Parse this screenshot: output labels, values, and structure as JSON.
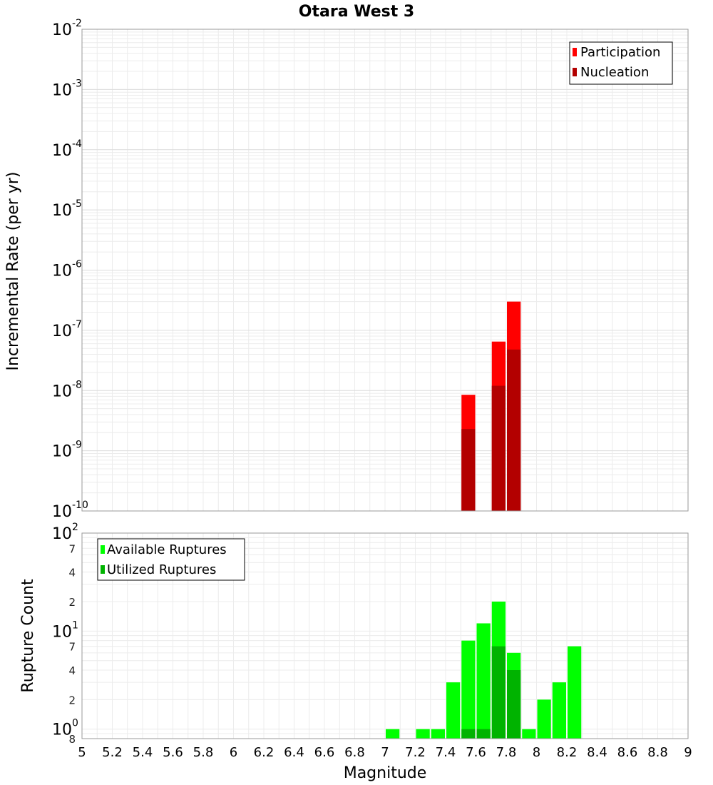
{
  "chart_data": [
    {
      "type": "bar",
      "title": "Otara West 3",
      "xlabel": "",
      "ylabel": "Incremental Rate (per yr)",
      "yscale": "log",
      "ylim": [
        1e-10,
        0.01
      ],
      "xlim": [
        5,
        9
      ],
      "grid": true,
      "bin_width": 0.1,
      "legend_position": "top-right",
      "y_tick_labels": [
        {
          "base": "10",
          "exp": "-10",
          "value": 1e-10
        },
        {
          "base": "10",
          "exp": "-9",
          "value": 1e-09
        },
        {
          "base": "10",
          "exp": "-8",
          "value": 1e-08
        },
        {
          "base": "10",
          "exp": "-7",
          "value": 1e-07
        },
        {
          "base": "10",
          "exp": "-6",
          "value": 1e-06
        },
        {
          "base": "10",
          "exp": "-5",
          "value": 1e-05
        },
        {
          "base": "10",
          "exp": "-4",
          "value": 0.0001
        },
        {
          "base": "10",
          "exp": "-3",
          "value": 0.001
        },
        {
          "base": "10",
          "exp": "-2",
          "value": 0.01
        }
      ],
      "series": [
        {
          "name": "Participation",
          "color": "#ff0000",
          "x": [
            7.55,
            7.75,
            7.85
          ],
          "values": [
            8.5e-09,
            6.5e-08,
            3e-07
          ]
        },
        {
          "name": "Nucleation",
          "color": "#b30000",
          "x": [
            7.55,
            7.75,
            7.85
          ],
          "values": [
            2.3e-09,
            1.2e-08,
            4.8e-08
          ]
        }
      ]
    },
    {
      "type": "bar",
      "title": "",
      "xlabel": "Magnitude",
      "ylabel": "Rupture Count",
      "yscale": "log",
      "ylim": [
        0.8,
        100
      ],
      "xlim": [
        5,
        9
      ],
      "grid": true,
      "bin_width": 0.1,
      "legend_position": "top-left",
      "x_ticks": [
        "5",
        "5.2",
        "5.4",
        "5.6",
        "5.8",
        "6",
        "6.2",
        "6.4",
        "6.6",
        "6.8",
        "7",
        "7.2",
        "7.4",
        "7.6",
        "7.8",
        "8",
        "8.2",
        "8.4",
        "8.6",
        "8.8",
        "9"
      ],
      "y_major_ticks": [
        {
          "base": "10",
          "exp": "0",
          "value": 1
        },
        {
          "base": "10",
          "exp": "1",
          "value": 10
        },
        {
          "base": "10",
          "exp": "2",
          "value": 100
        }
      ],
      "y_minor_ticks": [
        {
          "label": "8",
          "value": 0.8
        },
        {
          "label": "2",
          "value": 2
        },
        {
          "label": "4",
          "value": 4
        },
        {
          "label": "7",
          "value": 7
        },
        {
          "label": "2",
          "value": 20
        },
        {
          "label": "4",
          "value": 40
        },
        {
          "label": "7",
          "value": 70
        }
      ],
      "series": [
        {
          "name": "Available Ruptures",
          "color": "#00ff00",
          "x": [
            7.05,
            7.25,
            7.35,
            7.45,
            7.55,
            7.65,
            7.75,
            7.85,
            7.95,
            8.05,
            8.15,
            8.25
          ],
          "values": [
            1,
            1,
            1,
            3,
            8,
            12,
            20,
            6,
            1,
            2,
            3,
            7
          ]
        },
        {
          "name": "Utilized Ruptures",
          "color": "#00b300",
          "x": [
            7.55,
            7.65,
            7.75,
            7.85
          ],
          "values": [
            1,
            1,
            7,
            4
          ]
        }
      ]
    }
  ]
}
